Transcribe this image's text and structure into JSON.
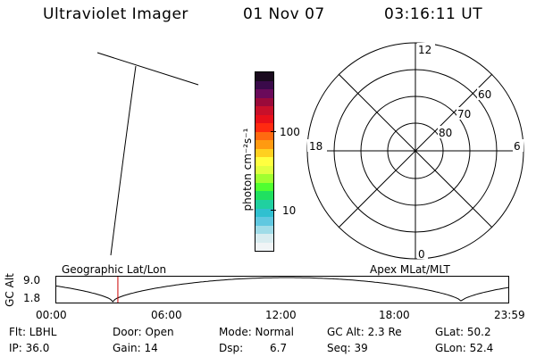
{
  "header": {
    "instrument": "Ultraviolet Imager",
    "date": "01 Nov 07",
    "time": "03:16:11 UT"
  },
  "colorbar": {
    "unit_label": "photon cm⁻²s⁻¹",
    "tick_100": "100",
    "tick_10": "10",
    "colors": [
      "#1a0a1e",
      "#3a0a4a",
      "#6a0a5a",
      "#9a0a3a",
      "#c8102a",
      "#e8101a",
      "#ff2a10",
      "#ff6a10",
      "#ff9a10",
      "#ffd020",
      "#ffff40",
      "#e0ff40",
      "#a0ff30",
      "#50ff30",
      "#20e060",
      "#20d0a0",
      "#30c0d0",
      "#60c8e0",
      "#a0dce8",
      "#d8ecf0",
      "#f0f4f6"
    ]
  },
  "left_panel": {
    "label": "Geographic Lat/Lon"
  },
  "polar": {
    "label": "Apex  MLat/MLT",
    "mlt_top": "12",
    "mlt_left": "18",
    "mlt_right": "6",
    "mlt_bottom": "0",
    "lat_60": "60",
    "lat_70": "70",
    "lat_80": "80"
  },
  "timeline": {
    "ylabel": "GC Alt",
    "ymax": "9.0",
    "ymin": "1.8",
    "ticks": [
      "00:00",
      "06:00",
      "12:00",
      "18:00",
      "23:59"
    ],
    "current_hour": 3.27,
    "marker_color": "#cc0000"
  },
  "info": {
    "row1": {
      "flt": "Flt: LBHL",
      "door": "Door: Open",
      "mode": "Mode: Normal",
      "gcalt": "GC Alt: 2.3 Re",
      "glat": "GLat:  50.2"
    },
    "row2": {
      "ip": "IP: 36.0",
      "gain": "Gain: 14",
      "dsp_label": "Dsp:",
      "dsp_value": "6.7",
      "seq": "Seq: 39",
      "glon": "GLon:  52.4"
    }
  }
}
